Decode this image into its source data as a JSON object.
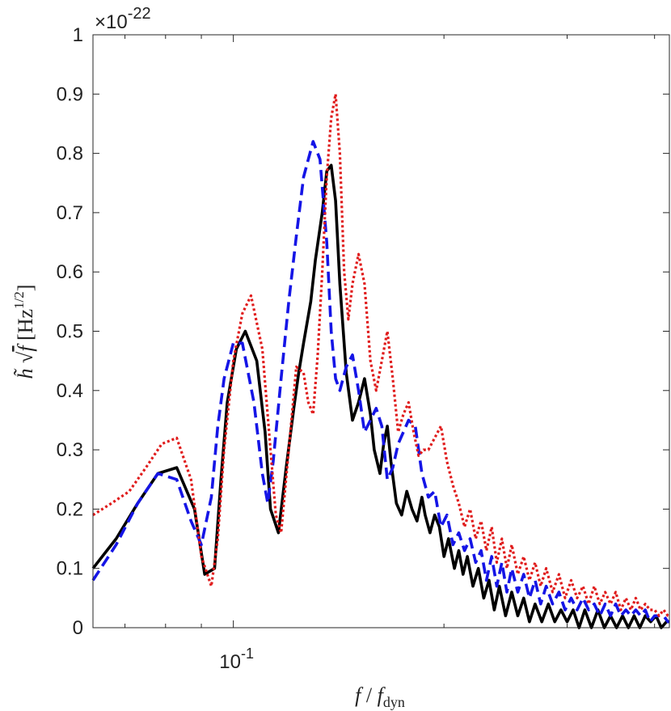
{
  "chart_data": {
    "type": "line",
    "title": "",
    "xlabel": "f / f_dyn",
    "ylabel": "h̃ √f [Hz^1/2]",
    "xscale": "log",
    "xlim": [
      0.063,
      0.42
    ],
    "ylim": [
      0,
      1
    ],
    "y_multiplier": "×10",
    "y_multiplier_exponent": "-22",
    "x_ticks": [
      {
        "value": 0.1,
        "base": "10",
        "exponent": "-1"
      }
    ],
    "y_ticks": [
      "0",
      "0.1",
      "0.2",
      "0.3",
      "0.4",
      "0.5",
      "0.6",
      "0.7",
      "0.8",
      "0.9",
      "1"
    ],
    "grid": false,
    "series": [
      {
        "style": "solid",
        "color": "#000000",
        "x": [
          0.063,
          0.068,
          0.073,
          0.078,
          0.083,
          0.088,
          0.091,
          0.094,
          0.096,
          0.098,
          0.101,
          0.104,
          0.108,
          0.111,
          0.113,
          0.116,
          0.119,
          0.122,
          0.124,
          0.126,
          0.129,
          0.131,
          0.134,
          0.136,
          0.138,
          0.14,
          0.142,
          0.145,
          0.148,
          0.151,
          0.154,
          0.157,
          0.159,
          0.162,
          0.164,
          0.166,
          0.168,
          0.171,
          0.174,
          0.177,
          0.18,
          0.183,
          0.186,
          0.188,
          0.191,
          0.194,
          0.197,
          0.2,
          0.203,
          0.207,
          0.21,
          0.213,
          0.216,
          0.22,
          0.224,
          0.228,
          0.232,
          0.236,
          0.24,
          0.245,
          0.25,
          0.255,
          0.26,
          0.265,
          0.27,
          0.276,
          0.282,
          0.288,
          0.294,
          0.3,
          0.306,
          0.312,
          0.318,
          0.325,
          0.332,
          0.339,
          0.346,
          0.353,
          0.36,
          0.367,
          0.374,
          0.381,
          0.388,
          0.395,
          0.402,
          0.409,
          0.416,
          0.42
        ],
        "y": [
          0.1,
          0.15,
          0.21,
          0.26,
          0.27,
          0.2,
          0.09,
          0.1,
          0.25,
          0.38,
          0.47,
          0.5,
          0.45,
          0.33,
          0.2,
          0.16,
          0.27,
          0.37,
          0.43,
          0.48,
          0.55,
          0.62,
          0.7,
          0.77,
          0.78,
          0.72,
          0.58,
          0.43,
          0.35,
          0.38,
          0.42,
          0.36,
          0.3,
          0.26,
          0.31,
          0.34,
          0.28,
          0.21,
          0.19,
          0.23,
          0.2,
          0.18,
          0.22,
          0.19,
          0.16,
          0.19,
          0.17,
          0.12,
          0.15,
          0.1,
          0.13,
          0.09,
          0.12,
          0.07,
          0.1,
          0.05,
          0.08,
          0.03,
          0.07,
          0.02,
          0.06,
          0.02,
          0.05,
          0.01,
          0.04,
          0.01,
          0.04,
          0.01,
          0.03,
          0.01,
          0.03,
          0.0,
          0.03,
          0.0,
          0.03,
          0.0,
          0.02,
          0.0,
          0.02,
          0.0,
          0.02,
          0.0,
          0.02,
          0.01,
          0.02,
          0.0,
          0.01,
          0.01
        ]
      },
      {
        "style": "dashed",
        "color": "#1515e6",
        "x": [
          0.063,
          0.068,
          0.073,
          0.078,
          0.083,
          0.087,
          0.09,
          0.093,
          0.095,
          0.097,
          0.1,
          0.103,
          0.107,
          0.11,
          0.112,
          0.114,
          0.117,
          0.12,
          0.123,
          0.126,
          0.13,
          0.133,
          0.136,
          0.138,
          0.14,
          0.142,
          0.145,
          0.148,
          0.151,
          0.154,
          0.157,
          0.16,
          0.163,
          0.166,
          0.169,
          0.172,
          0.175,
          0.178,
          0.182,
          0.186,
          0.19,
          0.194,
          0.198,
          0.202,
          0.206,
          0.21,
          0.214,
          0.218,
          0.222,
          0.226,
          0.23,
          0.234,
          0.238,
          0.242,
          0.246,
          0.25,
          0.255,
          0.26,
          0.265,
          0.27,
          0.275,
          0.28,
          0.286,
          0.292,
          0.298,
          0.304,
          0.31,
          0.316,
          0.322,
          0.328,
          0.334,
          0.34,
          0.346,
          0.352,
          0.358,
          0.364,
          0.37,
          0.376,
          0.382,
          0.388,
          0.394,
          0.4,
          0.406,
          0.412,
          0.418,
          0.42
        ],
        "y": [
          0.08,
          0.14,
          0.21,
          0.26,
          0.25,
          0.18,
          0.14,
          0.22,
          0.34,
          0.42,
          0.48,
          0.48,
          0.38,
          0.26,
          0.21,
          0.28,
          0.42,
          0.55,
          0.66,
          0.76,
          0.82,
          0.79,
          0.65,
          0.5,
          0.42,
          0.4,
          0.44,
          0.46,
          0.4,
          0.33,
          0.35,
          0.37,
          0.34,
          0.25,
          0.27,
          0.31,
          0.33,
          0.35,
          0.34,
          0.26,
          0.22,
          0.23,
          0.17,
          0.19,
          0.14,
          0.16,
          0.13,
          0.15,
          0.11,
          0.13,
          0.08,
          0.12,
          0.07,
          0.11,
          0.06,
          0.1,
          0.06,
          0.09,
          0.05,
          0.08,
          0.04,
          0.07,
          0.04,
          0.06,
          0.03,
          0.05,
          0.03,
          0.05,
          0.03,
          0.04,
          0.02,
          0.04,
          0.02,
          0.04,
          0.02,
          0.03,
          0.02,
          0.03,
          0.02,
          0.03,
          0.01,
          0.02,
          0.02,
          0.02,
          0.01,
          0.01
        ]
      },
      {
        "style": "dotted",
        "color": "#e01b1b",
        "x": [
          0.063,
          0.067,
          0.071,
          0.075,
          0.079,
          0.083,
          0.087,
          0.09,
          0.093,
          0.095,
          0.097,
          0.1,
          0.103,
          0.106,
          0.11,
          0.113,
          0.115,
          0.117,
          0.12,
          0.123,
          0.126,
          0.128,
          0.13,
          0.132,
          0.134,
          0.136,
          0.138,
          0.14,
          0.142,
          0.144,
          0.146,
          0.148,
          0.151,
          0.154,
          0.157,
          0.16,
          0.163,
          0.166,
          0.169,
          0.172,
          0.175,
          0.178,
          0.181,
          0.184,
          0.187,
          0.19,
          0.194,
          0.198,
          0.202,
          0.206,
          0.21,
          0.214,
          0.218,
          0.222,
          0.226,
          0.23,
          0.234,
          0.238,
          0.242,
          0.246,
          0.25,
          0.255,
          0.26,
          0.265,
          0.27,
          0.275,
          0.28,
          0.286,
          0.292,
          0.298,
          0.304,
          0.31,
          0.316,
          0.322,
          0.328,
          0.334,
          0.34,
          0.346,
          0.352,
          0.358,
          0.364,
          0.37,
          0.376,
          0.382,
          0.388,
          0.394,
          0.4,
          0.406,
          0.412,
          0.418,
          0.42
        ],
        "y": [
          0.19,
          0.21,
          0.23,
          0.27,
          0.31,
          0.32,
          0.25,
          0.12,
          0.07,
          0.15,
          0.3,
          0.45,
          0.53,
          0.56,
          0.47,
          0.3,
          0.19,
          0.16,
          0.3,
          0.44,
          0.43,
          0.38,
          0.36,
          0.46,
          0.6,
          0.76,
          0.86,
          0.9,
          0.8,
          0.6,
          0.52,
          0.58,
          0.63,
          0.58,
          0.45,
          0.4,
          0.45,
          0.5,
          0.42,
          0.33,
          0.36,
          0.38,
          0.33,
          0.29,
          0.3,
          0.3,
          0.32,
          0.34,
          0.28,
          0.24,
          0.21,
          0.17,
          0.2,
          0.15,
          0.18,
          0.13,
          0.17,
          0.11,
          0.15,
          0.1,
          0.14,
          0.09,
          0.12,
          0.08,
          0.11,
          0.07,
          0.1,
          0.06,
          0.09,
          0.05,
          0.08,
          0.05,
          0.07,
          0.04,
          0.07,
          0.04,
          0.06,
          0.04,
          0.06,
          0.03,
          0.05,
          0.03,
          0.05,
          0.03,
          0.04,
          0.03,
          0.03,
          0.02,
          0.03,
          0.02,
          0.02
        ]
      }
    ]
  }
}
